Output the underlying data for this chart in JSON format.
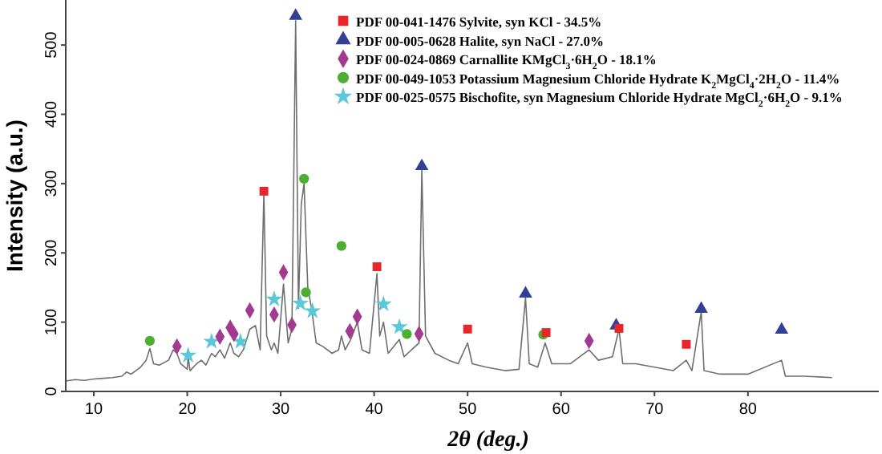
{
  "chart_data": {
    "type": "scatter",
    "xlabel": "2θ (deg.)",
    "ylabel": "Intensity (a.u.)",
    "xlim": [
      7,
      94
    ],
    "ylim": [
      0,
      565
    ],
    "xticks": [
      10,
      20,
      30,
      40,
      50,
      60,
      70,
      80
    ],
    "yticks": [
      0,
      100,
      200,
      300,
      400,
      500
    ],
    "grid": false,
    "legend": "top right",
    "series": [
      {
        "type": "line",
        "color": "#6e6e6e",
        "line_style": "solid",
        "x": [
          7,
          8,
          9,
          10,
          11,
          12,
          13,
          13.5,
          14,
          15,
          15.6,
          16,
          16.4,
          17,
          18,
          18.5,
          18.9,
          19.3,
          20,
          20.1,
          20.3,
          21,
          21.5,
          22,
          22.6,
          23,
          23.5,
          24,
          24.6,
          25,
          25.5,
          26,
          26.7,
          27.3,
          27.8,
          28.2,
          28.5,
          29,
          29.3,
          29.7,
          30.3,
          30.8,
          31.2,
          31.6,
          31.9,
          32.2,
          32.5,
          32.9,
          33.3,
          33.8,
          34.5,
          35.5,
          36.2,
          36.5,
          36.9,
          37.5,
          38.2,
          38.7,
          39.5,
          40.3,
          40.6,
          41,
          41.5,
          42.7,
          43.2,
          44,
          44.8,
          45.1,
          45.5,
          46.5,
          48,
          49,
          50,
          50.5,
          52,
          54,
          55.5,
          56.2,
          56.6,
          57.5,
          58.3,
          59,
          61,
          63,
          64,
          65.5,
          66.2,
          66.6,
          68,
          70,
          72,
          73.4,
          74,
          75,
          75.3,
          77,
          80,
          83.6,
          84,
          86,
          89
        ],
        "values": [
          15,
          17,
          16,
          18,
          19,
          20,
          22,
          28,
          25,
          35,
          45,
          62,
          40,
          38,
          45,
          60,
          55,
          40,
          32,
          50,
          30,
          40,
          45,
          38,
          55,
          50,
          60,
          48,
          70,
          55,
          50,
          60,
          90,
          95,
          60,
          285,
          80,
          60,
          70,
          55,
          155,
          70,
          90,
          535,
          120,
          270,
          300,
          150,
          120,
          70,
          65,
          55,
          60,
          80,
          60,
          75,
          100,
          60,
          55,
          170,
          80,
          100,
          55,
          75,
          50,
          60,
          70,
          320,
          80,
          55,
          45,
          40,
          70,
          40,
          35,
          30,
          32,
          135,
          40,
          35,
          70,
          40,
          40,
          60,
          45,
          50,
          90,
          40,
          40,
          35,
          30,
          45,
          30,
          115,
          30,
          25,
          25,
          45,
          22,
          22,
          20
        ]
      },
      {
        "name": "PDF 00-041-1476 Sylvite, syn KCl - 34.5%",
        "color": "#e8262a",
        "marker": "square",
        "x": [
          28.2,
          40.3,
          50.0,
          58.4,
          66.2,
          73.4
        ],
        "values": [
          289,
          180,
          90,
          85,
          91,
          68
        ]
      },
      {
        "name": "PDF 00-005-0628 Halite, syn NaCl - 27.0%",
        "color": "#333f97",
        "marker": "triangle",
        "x": [
          31.6,
          45.1,
          56.2,
          65.9,
          75.0,
          83.6
        ],
        "values": [
          542,
          325,
          141,
          95,
          119,
          89
        ]
      },
      {
        "name": "PDF 00-024-0869 Carnallite KMgCl$_{3}$·6H$_{2}$O - 18.1%",
        "color": "#a23a8f",
        "marker": "diamond",
        "x": [
          18.9,
          23.5,
          24.6,
          25.0,
          26.7,
          29.3,
          30.3,
          31.2,
          37.4,
          38.2,
          44.8,
          63.0
        ],
        "values": [
          65,
          79,
          92,
          83,
          117,
          111,
          172,
          96,
          87,
          108,
          83,
          73
        ]
      },
      {
        "name": "PDF 00-049-1053 Potassium Magnesium Chloride Hydrate K$_{2}$MgCl$_{4}$·2H$_{2}$O - 11.4%",
        "color": "#4caf32",
        "marker": "circle",
        "x": [
          16.0,
          32.5,
          32.7,
          36.5,
          43.5,
          58.1
        ],
        "values": [
          73,
          307,
          143,
          210,
          83,
          82
        ]
      },
      {
        "name": "PDF 00-025-0575 Bischofite, syn Magnesium Chloride Hydrate MgCl$_{2}$·6H$_{2}$O - 9.1%",
        "color": "#5bc8d8",
        "marker": "star",
        "x": [
          20.1,
          22.6,
          25.7,
          29.3,
          32.1,
          33.4,
          41.0,
          42.7
        ],
        "values": [
          52,
          72,
          72,
          133,
          127,
          116,
          126,
          93
        ]
      }
    ]
  }
}
